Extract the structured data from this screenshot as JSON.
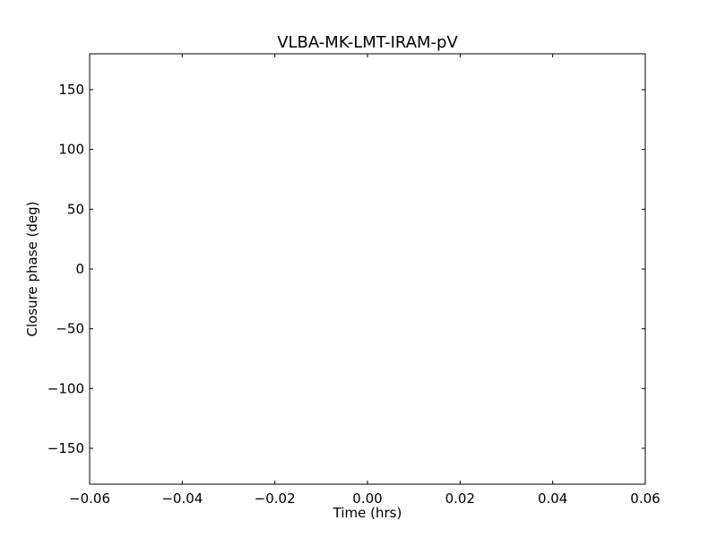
{
  "chart_data": {
    "type": "scatter",
    "title": "VLBA-MK-LMT-IRAM-pV",
    "xlabel": "Time (hrs)",
    "ylabel": "Closure phase (deg)",
    "xlim": [
      -0.06,
      0.06
    ],
    "ylim": [
      -180,
      180
    ],
    "xticks": [
      -0.06,
      -0.04,
      -0.02,
      0.0,
      0.02,
      0.04,
      0.06
    ],
    "xtick_labels": [
      "−0.06",
      "−0.04",
      "−0.02",
      "0.00",
      "0.02",
      "0.04",
      "0.06"
    ],
    "yticks": [
      -150,
      -100,
      -50,
      0,
      50,
      100,
      150
    ],
    "ytick_labels": [
      "−150",
      "−100",
      "−50",
      "0",
      "50",
      "100",
      "150"
    ],
    "grid": false,
    "series": [
      {
        "x": [],
        "y": []
      }
    ]
  }
}
